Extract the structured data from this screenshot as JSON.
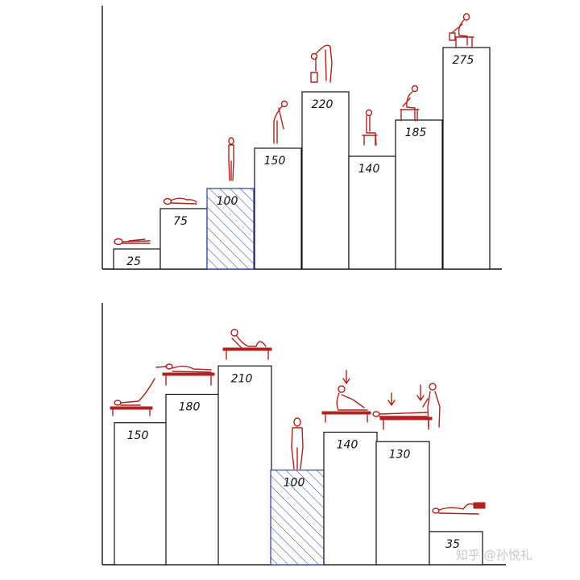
{
  "chart_data": [
    {
      "type": "bar",
      "categories": [
        "lying supine",
        "lying on side",
        "standing",
        "standing bent forward",
        "lifting from floor",
        "sitting",
        "sitting bent forward",
        "lifting while seated"
      ],
      "values": [
        25,
        75,
        100,
        150,
        220,
        140,
        185,
        275
      ],
      "reference_value": 100,
      "reference_style": "blue diagonal hatch",
      "bar_labels": [
        "25",
        "75",
        "100",
        "150",
        "220",
        "140",
        "185",
        "275"
      ],
      "title": "",
      "xlabel": "",
      "ylabel": "",
      "ylim": [
        0,
        300
      ],
      "grid": false,
      "figure_color": "#b0211f"
    },
    {
      "type": "bar",
      "categories": [
        "prone single leg raise",
        "prone back extension",
        "supine sit-up",
        "standing",
        "seated stretch",
        "prone with pressure",
        "side-lying"
      ],
      "values": [
        150,
        180,
        210,
        100,
        140,
        130,
        35
      ],
      "reference_value": 100,
      "reference_style": "blue diagonal hatch",
      "bar_labels": [
        "150",
        "180",
        "210",
        "100",
        "140",
        "130",
        "35"
      ],
      "title": "",
      "xlabel": "",
      "ylabel": "",
      "ylim": [
        0,
        300
      ],
      "grid": false,
      "figure_color": "#b0211f"
    }
  ],
  "watermark": "知乎 @孙悦礼",
  "colors": {
    "hatch": "#2b3aa8",
    "figures": "#b0211f",
    "bars": "#111111"
  }
}
